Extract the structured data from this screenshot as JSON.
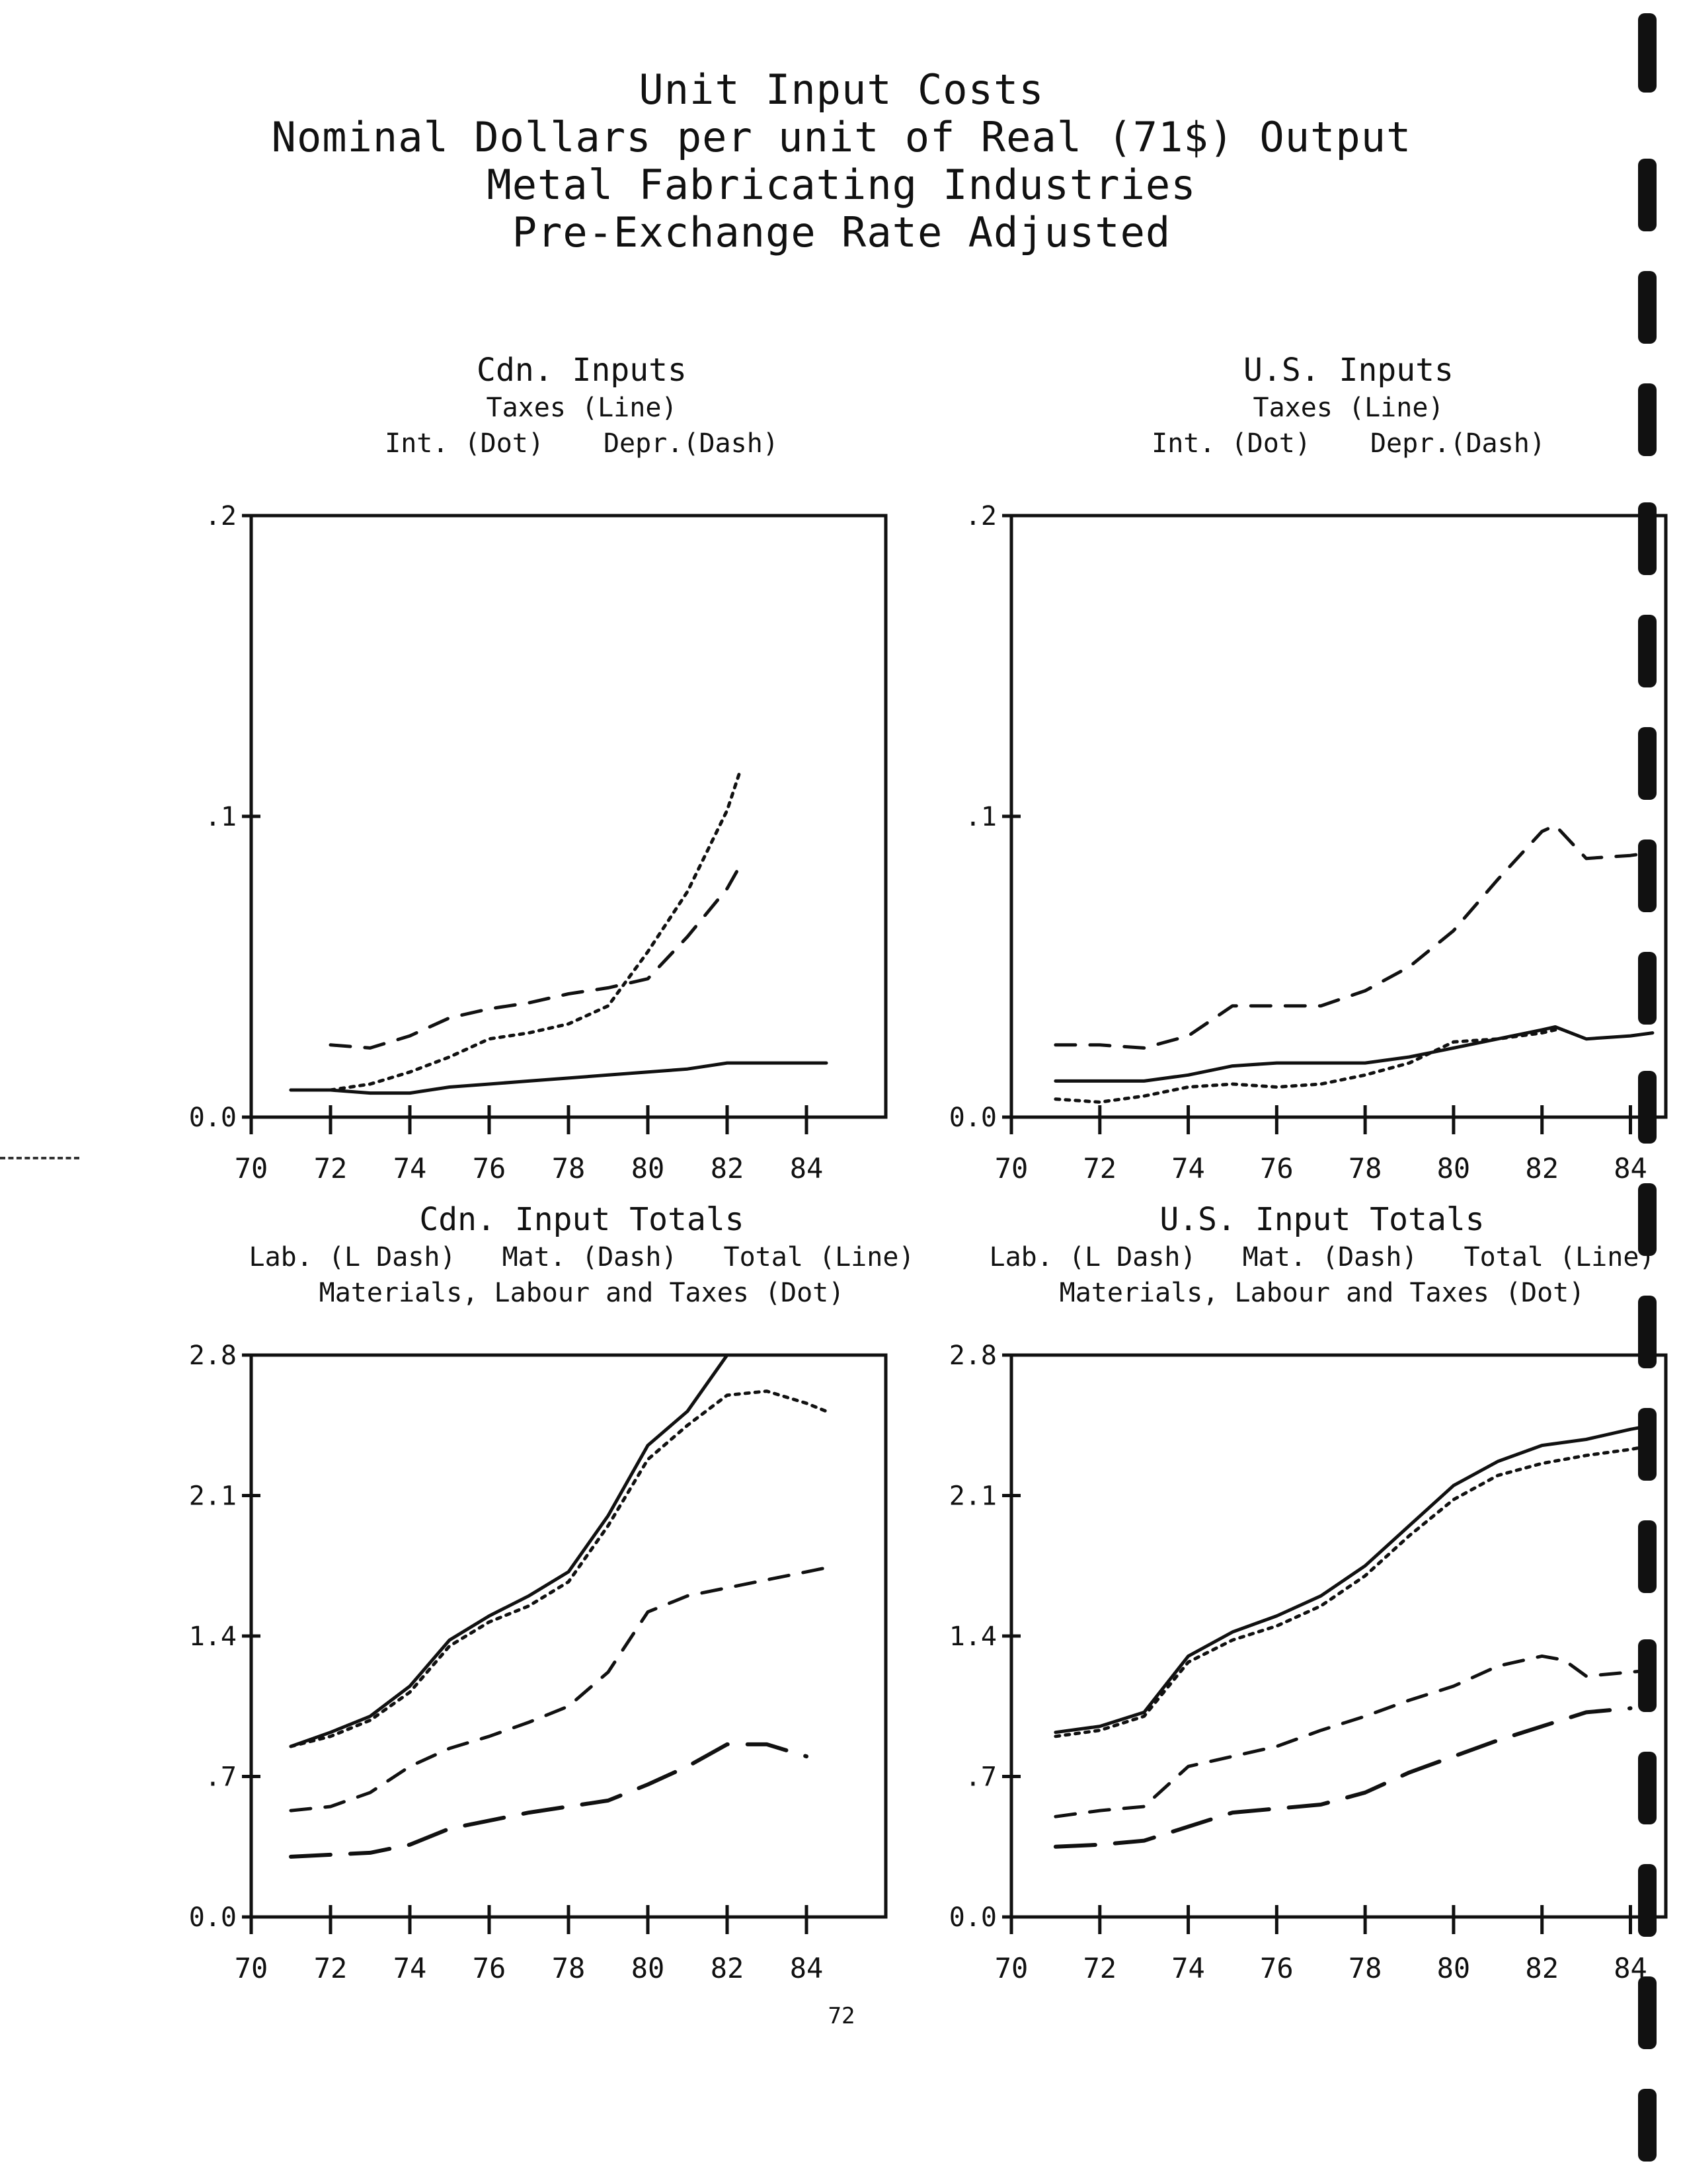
{
  "title_lines": [
    "Unit Input Costs",
    "Nominal Dollars per unit of Real (71$) Output",
    "Metal Fabricating Industries",
    "Pre-Exchange Rate Adjusted"
  ],
  "page_number": "72",
  "panels": {
    "cdn_inputs": {
      "title": "Cdn. Inputs",
      "legend_line1": "Taxes (Line)",
      "legend_line2a": "Int. (Dot)",
      "legend_line2b": "Depr.(Dash)",
      "y_tick_labels": [
        "0.0",
        ".1",
        ".2"
      ],
      "x_tick_labels": [
        "70",
        "72",
        "74",
        "76",
        "78",
        "80",
        "82",
        "84"
      ]
    },
    "us_inputs": {
      "title": "U.S. Inputs",
      "legend_line1": "Taxes (Line)",
      "legend_line2a": "Int. (Dot)",
      "legend_line2b": "Depr.(Dash)",
      "y_tick_labels": [
        "0.0",
        ".1",
        ".2"
      ],
      "x_tick_labels": [
        "70",
        "72",
        "74",
        "76",
        "78",
        "80",
        "82",
        "84"
      ]
    },
    "cdn_totals": {
      "title": "Cdn. Input Totals",
      "legend_line1a": "Lab. (L Dash)",
      "legend_line1b": "Mat. (Dash)",
      "legend_line1c": "Total (Line)",
      "legend_line2": "Materials, Labour and Taxes (Dot)",
      "y_tick_labels": [
        "0.0",
        ".7",
        "1.4",
        "2.1",
        "2.8"
      ],
      "x_tick_labels": [
        "70",
        "72",
        "74",
        "76",
        "78",
        "80",
        "82",
        "84"
      ]
    },
    "us_totals": {
      "title": "U.S. Input Totals",
      "legend_line1a": "Lab. (L Dash)",
      "legend_line1b": "Mat. (Dash)",
      "legend_line1c": "Total (Line)",
      "legend_line2": "Materials, Labour and Taxes (Dot)",
      "y_tick_labels": [
        "0.0",
        ".7",
        "1.4",
        "2.1",
        "2.8"
      ],
      "x_tick_labels": [
        "70",
        "72",
        "74",
        "76",
        "78",
        "80",
        "82",
        "84"
      ]
    }
  },
  "chart_data": [
    {
      "type": "line",
      "title": "Cdn. Inputs",
      "xlim": [
        70,
        86
      ],
      "ylim": [
        0,
        0.2
      ],
      "grid": false,
      "x": [
        71,
        72,
        73,
        74,
        75,
        76,
        77,
        78,
        79,
        80,
        81,
        82,
        83,
        84,
        84.5
      ],
      "series": [
        {
          "name": "Taxes",
          "style": "solid",
          "x": [
            71,
            72,
            73,
            74,
            75,
            76,
            77,
            78,
            79,
            80,
            81,
            82,
            83,
            84,
            84.5
          ],
          "values": [
            0.009,
            0.009,
            0.008,
            0.008,
            0.01,
            0.011,
            0.012,
            0.013,
            0.014,
            0.015,
            0.016,
            0.018,
            0.018,
            0.018,
            0.018
          ]
        },
        {
          "name": "Int.",
          "style": "dot",
          "x": [
            71,
            72,
            73,
            74,
            75,
            76,
            77,
            78,
            79,
            80,
            81,
            82,
            82.3
          ],
          "values": [
            0.009,
            0.009,
            0.011,
            0.015,
            0.02,
            0.026,
            0.028,
            0.031,
            0.037,
            0.055,
            0.075,
            0.102,
            0.114
          ]
        },
        {
          "name": "Depr.",
          "style": "dash",
          "x": [
            72,
            73,
            74,
            75,
            76,
            77,
            78,
            79,
            80,
            81,
            82,
            82.3
          ],
          "values": [
            0.024,
            0.023,
            0.027,
            0.033,
            0.036,
            0.038,
            0.041,
            0.043,
            0.046,
            0.06,
            0.076,
            0.083
          ]
        }
      ]
    },
    {
      "type": "line",
      "title": "U.S. Inputs",
      "xlim": [
        70,
        84.8
      ],
      "ylim": [
        0,
        0.2
      ],
      "grid": false,
      "series": [
        {
          "name": "Taxes",
          "style": "solid",
          "x": [
            71,
            72,
            73,
            74,
            75,
            76,
            77,
            78,
            79,
            80,
            81,
            82,
            82.3,
            83,
            84,
            84.5
          ],
          "values": [
            0.012,
            0.012,
            0.012,
            0.014,
            0.017,
            0.018,
            0.018,
            0.018,
            0.02,
            0.023,
            0.026,
            0.029,
            0.03,
            0.026,
            0.027,
            0.028
          ]
        },
        {
          "name": "Int.",
          "style": "dot",
          "x": [
            71,
            72,
            73,
            74,
            75,
            76,
            77,
            78,
            79,
            80,
            81,
            82,
            82.3
          ],
          "values": [
            0.006,
            0.005,
            0.007,
            0.01,
            0.011,
            0.01,
            0.011,
            0.014,
            0.018,
            0.025,
            0.026,
            0.028,
            0.029
          ]
        },
        {
          "name": "Depr.",
          "style": "dash",
          "x": [
            71,
            72,
            73,
            74,
            75,
            76,
            77,
            78,
            79,
            80,
            81,
            82,
            82.3,
            83,
            84,
            84.5
          ],
          "values": [
            0.024,
            0.024,
            0.023,
            0.027,
            0.037,
            0.037,
            0.037,
            0.042,
            0.05,
            0.062,
            0.079,
            0.095,
            0.097,
            0.086,
            0.087,
            0.088
          ]
        }
      ]
    },
    {
      "type": "line",
      "title": "Cdn. Input Totals",
      "xlim": [
        70,
        86
      ],
      "ylim": [
        0,
        2.8
      ],
      "grid": false,
      "series": [
        {
          "name": "Total",
          "style": "solid",
          "x": [
            71,
            72,
            73,
            74,
            75,
            76,
            77,
            78,
            79,
            80,
            81,
            82
          ],
          "values": [
            0.85,
            0.92,
            1.0,
            1.15,
            1.38,
            1.5,
            1.6,
            1.72,
            2.0,
            2.35,
            2.52,
            2.8
          ]
        },
        {
          "name": "Materials, Labour and Taxes",
          "style": "dot",
          "x": [
            71,
            72,
            73,
            74,
            75,
            76,
            77,
            78,
            79,
            80,
            81,
            82,
            83,
            84,
            84.5
          ],
          "values": [
            0.85,
            0.9,
            0.98,
            1.12,
            1.35,
            1.47,
            1.55,
            1.67,
            1.95,
            2.28,
            2.45,
            2.6,
            2.62,
            2.56,
            2.52
          ]
        },
        {
          "name": "Mat.",
          "style": "dash",
          "x": [
            71,
            72,
            73,
            74,
            75,
            76,
            77,
            78,
            79,
            80,
            81,
            82,
            83,
            84,
            84.5
          ],
          "values": [
            0.53,
            0.55,
            0.62,
            0.75,
            0.84,
            0.9,
            0.97,
            1.05,
            1.22,
            1.52,
            1.6,
            1.64,
            1.68,
            1.72,
            1.74
          ]
        },
        {
          "name": "Lab.",
          "style": "long-dash",
          "x": [
            71,
            72,
            73,
            74,
            75,
            76,
            77,
            78,
            79,
            80,
            81,
            82,
            83,
            84
          ],
          "values": [
            0.3,
            0.31,
            0.32,
            0.36,
            0.44,
            0.48,
            0.52,
            0.55,
            0.58,
            0.66,
            0.75,
            0.86,
            0.86,
            0.8
          ]
        }
      ]
    },
    {
      "type": "line",
      "title": "U.S. Input Totals",
      "xlim": [
        70,
        84.8
      ],
      "ylim": [
        0,
        2.8
      ],
      "grid": false,
      "series": [
        {
          "name": "Total",
          "style": "solid",
          "x": [
            71,
            72,
            73,
            74,
            75,
            76,
            77,
            78,
            79,
            80,
            81,
            82,
            83,
            84,
            84.5
          ],
          "values": [
            0.92,
            0.95,
            1.02,
            1.3,
            1.42,
            1.5,
            1.6,
            1.75,
            1.95,
            2.15,
            2.27,
            2.35,
            2.38,
            2.43,
            2.45
          ]
        },
        {
          "name": "Materials, Labour and Taxes",
          "style": "dot",
          "x": [
            71,
            72,
            73,
            74,
            75,
            76,
            77,
            78,
            79,
            80,
            81,
            82,
            83,
            84,
            84.5
          ],
          "values": [
            0.9,
            0.93,
            1.0,
            1.27,
            1.38,
            1.45,
            1.55,
            1.7,
            1.9,
            2.08,
            2.2,
            2.26,
            2.3,
            2.33,
            2.35
          ]
        },
        {
          "name": "Mat.",
          "style": "dash",
          "x": [
            71,
            72,
            73,
            74,
            75,
            76,
            77,
            78,
            79,
            80,
            81,
            82,
            82.5,
            83,
            84,
            84.5
          ],
          "values": [
            0.5,
            0.53,
            0.55,
            0.75,
            0.8,
            0.85,
            0.93,
            1.0,
            1.08,
            1.15,
            1.25,
            1.3,
            1.28,
            1.2,
            1.22,
            1.23
          ]
        },
        {
          "name": "Lab.",
          "style": "long-dash",
          "x": [
            71,
            72,
            73,
            74,
            75,
            76,
            77,
            78,
            79,
            80,
            81,
            82,
            83,
            84
          ],
          "values": [
            0.35,
            0.36,
            0.38,
            0.45,
            0.52,
            0.54,
            0.56,
            0.62,
            0.72,
            0.8,
            0.88,
            0.95,
            1.02,
            1.04
          ]
        }
      ]
    }
  ]
}
